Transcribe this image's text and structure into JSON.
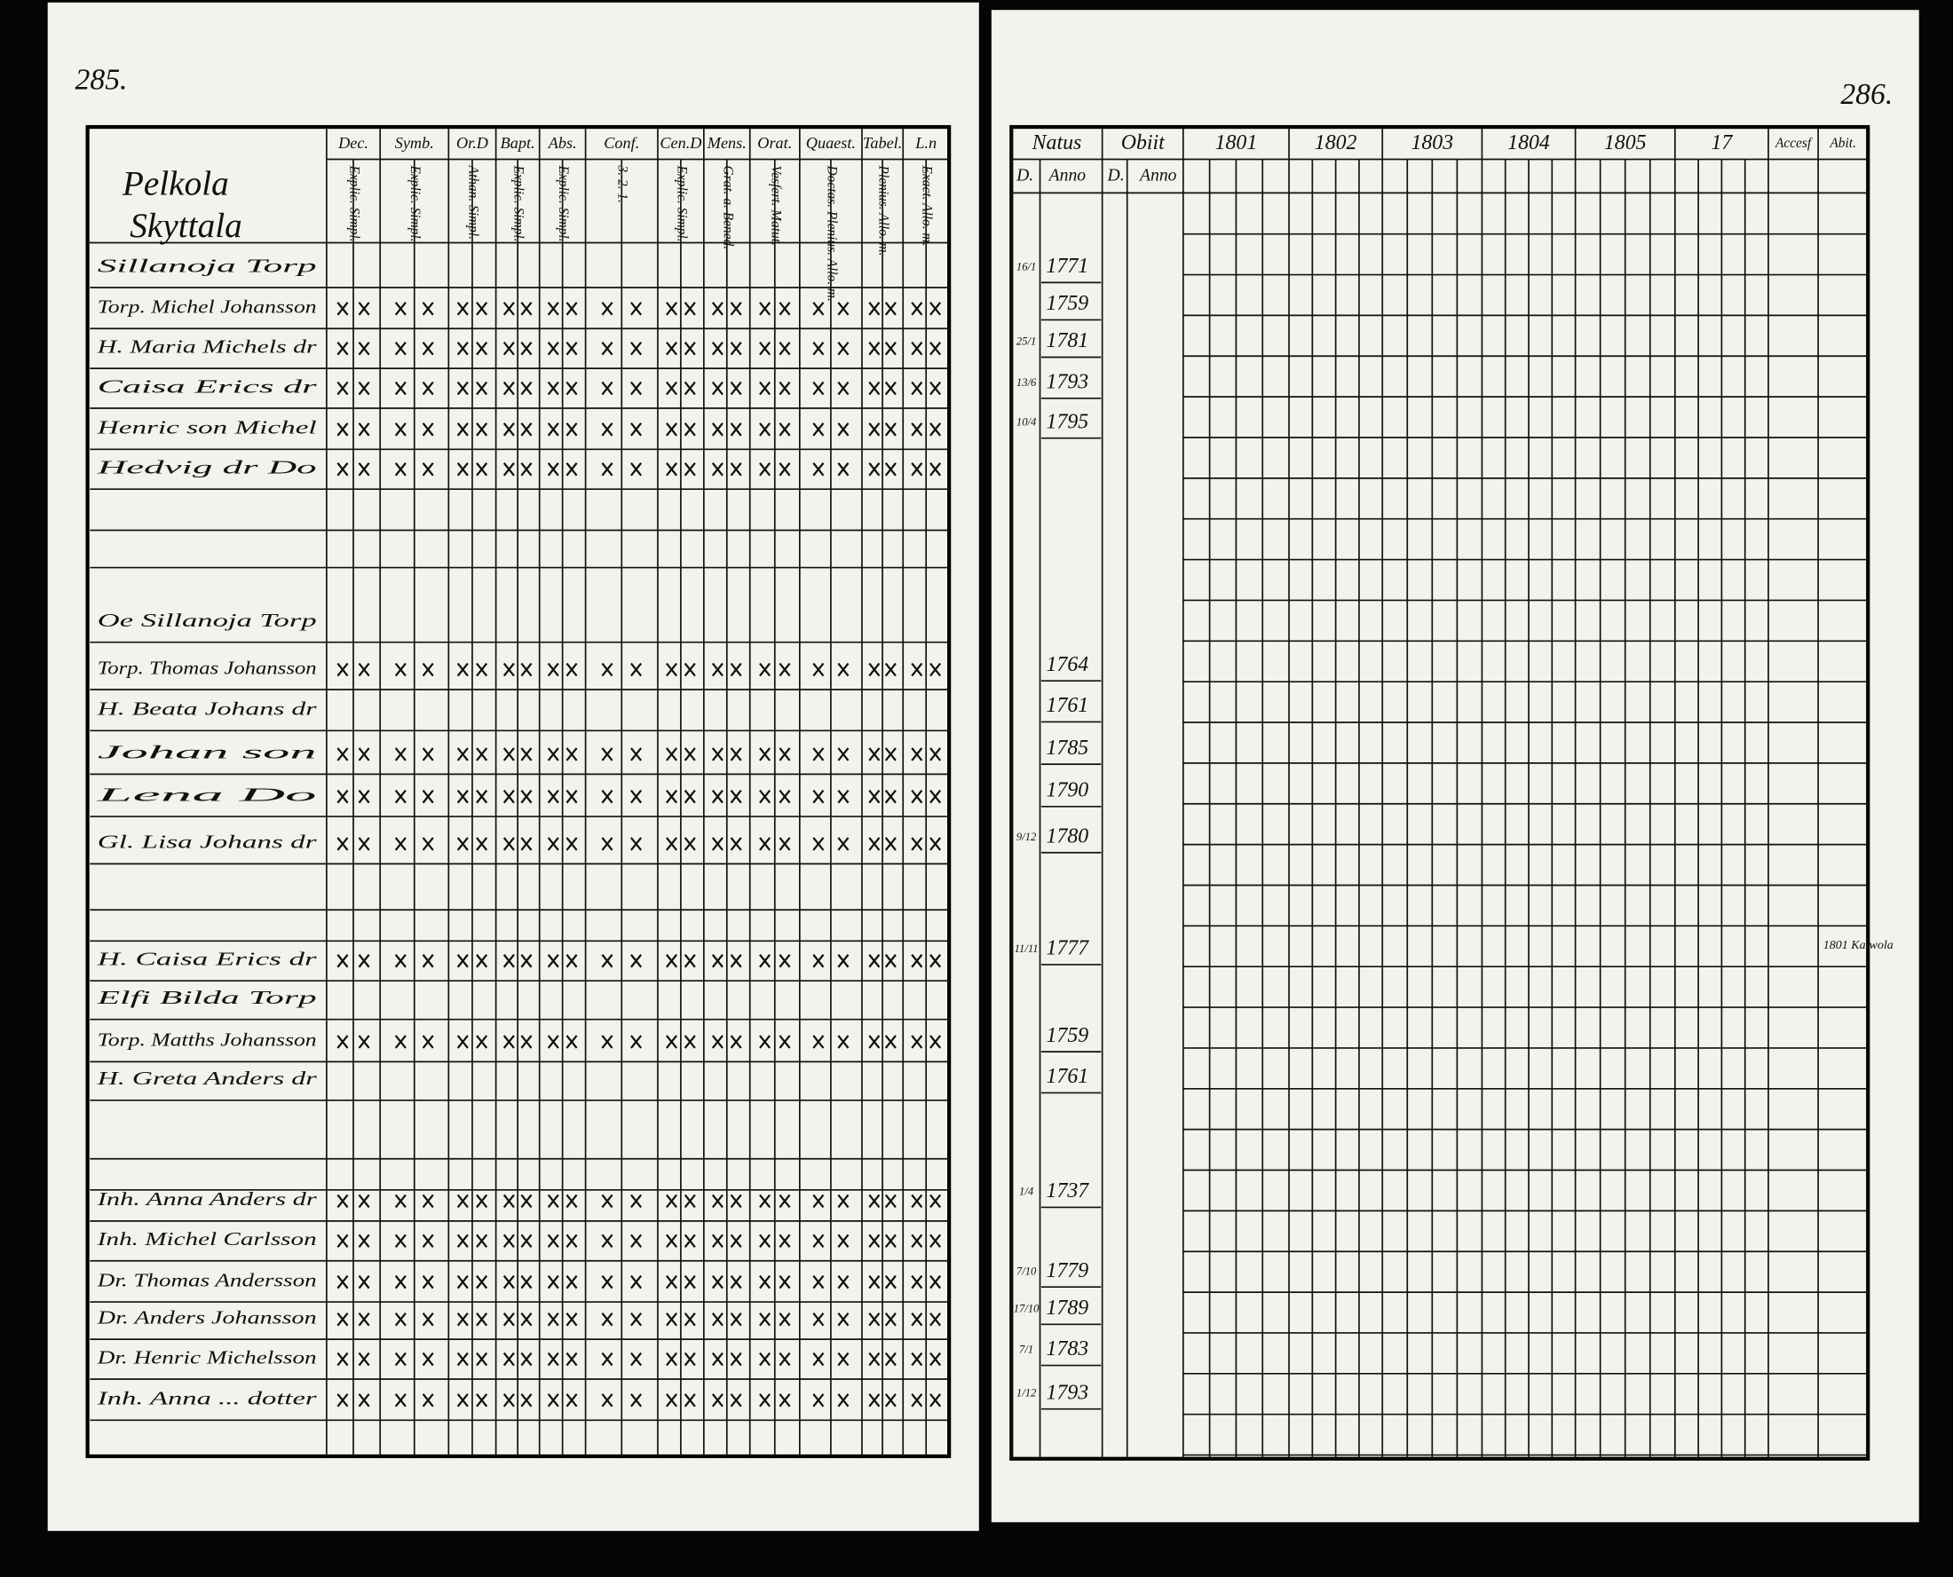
{
  "left_page": {
    "page_number": "285.",
    "heading": [
      "Pelkola",
      "Skyttala"
    ],
    "columns": [
      {
        "top": "Dec.",
        "sub": "Explic. Simpl."
      },
      {
        "top": "Symb.",
        "sub": "Explic. Simpl."
      },
      {
        "top": "Or.D",
        "sub": "Athan. Simpl."
      },
      {
        "top": "Bapt.",
        "sub": "Explic. Simpl."
      },
      {
        "top": "Abs.",
        "sub": "Explic. Simpl."
      },
      {
        "top": "Conf.",
        "sub": "3. 2. 1."
      },
      {
        "top": "Cen.D",
        "sub": "Explic. Simpl."
      },
      {
        "top": "Mens.",
        "sub": "Grat. a. Bened."
      },
      {
        "top": "Orat.",
        "sub": "Vesfert. Matut."
      },
      {
        "top": "Quaest.",
        "sub": "Doctas. Plenius. Allo. m."
      },
      {
        "top": "Tabel.",
        "sub": "Plenius. Allo. m."
      },
      {
        "top": "L.n",
        "sub": "Exact. Allo. m."
      }
    ],
    "rows": [
      {
        "name": "Sillanoja Torp"
      },
      {
        "name": "Torp. Michel Johansson"
      },
      {
        "name": "H. Maria Michels dr"
      },
      {
        "name": "Caisa Erics dr"
      },
      {
        "name": "Henric son Michel"
      },
      {
        "name": "Hedvig dr Do"
      },
      {
        "name": "Oe Sillanoja Torp"
      },
      {
        "name": "Torp. Thomas Johansson"
      },
      {
        "name": "H. Beata Johans dr"
      },
      {
        "name": "Johan son"
      },
      {
        "name": "Lena Do"
      },
      {
        "name": "Gl. Lisa Johans dr"
      },
      {
        "name": "H. Caisa Erics dr"
      },
      {
        "name": "Elfi Bilda Torp"
      },
      {
        "name": "Torp. Matths Johansson"
      },
      {
        "name": "H. Greta Anders dr"
      },
      {
        "name": "Inh. Anna Anders dr"
      },
      {
        "name": "Inh. Michel Carlsson"
      },
      {
        "name": "Dr. Thomas Andersson"
      },
      {
        "name": "Dr. Anders Johansson"
      },
      {
        "name": "Dr. Henric Michelsson"
      },
      {
        "name": "Inh. Anna ... dotter"
      }
    ]
  },
  "right_page": {
    "page_number": "286.",
    "columns": [
      {
        "top": "Natus",
        "sub": [
          "D.",
          "Anno"
        ]
      },
      {
        "top": "Obiit",
        "sub": [
          "D.",
          "Anno"
        ]
      },
      {
        "top": "1801"
      },
      {
        "top": "1802"
      },
      {
        "top": "1803"
      },
      {
        "top": "1804"
      },
      {
        "top": "1805"
      },
      {
        "top": "17"
      },
      {
        "top": "Accesf"
      },
      {
        "top": "Abit."
      }
    ],
    "births": [
      {
        "day": "16/1",
        "anno": "1771"
      },
      {
        "anno": "1759"
      },
      {
        "day": "25/1",
        "anno": "1781"
      },
      {
        "day": "13/6",
        "anno": "1793"
      },
      {
        "day": "10/4",
        "anno": "1795"
      },
      {
        "anno": "1764"
      },
      {
        "anno": "1761"
      },
      {
        "anno": "1785"
      },
      {
        "anno": "1790"
      },
      {
        "day": "9/12",
        "anno": "1780"
      },
      {
        "day": "11/11",
        "anno": "1777"
      },
      {
        "anno": "1759"
      },
      {
        "anno": "1761"
      },
      {
        "day": "1/4",
        "anno": "1737"
      },
      {
        "day": "7/10",
        "anno": "1779"
      },
      {
        "day": "17/10",
        "anno": "1789"
      },
      {
        "day": "7/1",
        "anno": "1783"
      },
      {
        "day": "1/12",
        "anno": "1793"
      }
    ],
    "note": "1801 Kalwola"
  }
}
